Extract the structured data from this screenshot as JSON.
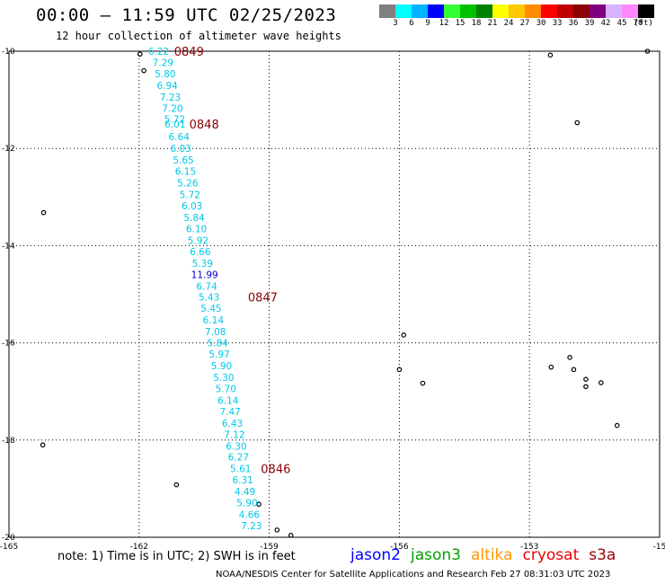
{
  "header": {
    "title": "00:00 – 11:59 UTC 02/25/2023",
    "subtitle": "12 hour collection of altimeter wave heights"
  },
  "color_scale": {
    "labels": [
      "3",
      "6",
      "9",
      "12",
      "15",
      "18",
      "21",
      "24",
      "27",
      "30",
      "33",
      "36",
      "39",
      "42",
      "45",
      "70",
      "(ft)"
    ],
    "colors": [
      "#7f7f7f",
      "#00ffff",
      "#00b4ff",
      "#0000ff",
      "#33ff33",
      "#00c000",
      "#008000",
      "#ffff00",
      "#ffc800",
      "#ff8c00",
      "#ff0000",
      "#c00000",
      "#8b0000",
      "#800080",
      "#d8b4ff",
      "#ff88ff",
      "#000000"
    ]
  },
  "chart_data": {
    "type": "scatter",
    "title": "00:00 – 11:59 UTC 02/25/2023",
    "subtitle": "12 hour collection of altimeter wave heights",
    "xlabel": "",
    "ylabel": "",
    "xlim": [
      -165,
      -150
    ],
    "ylim": [
      -20,
      -10
    ],
    "x_ticks": [
      "-165",
      "-162",
      "-159",
      "-156",
      "-153",
      "-15"
    ],
    "y_ticks": [
      "-10",
      "-12",
      "-14",
      "-16",
      "-18",
      "-20"
    ],
    "grid": true,
    "series": [
      {
        "name": "cryosat",
        "color": "#00c8e8",
        "points": [
          {
            "lon": -161.55,
            "lat": -10.0,
            "label": "6.22"
          },
          {
            "lon": -161.45,
            "lat": -10.23,
            "label": "7.29"
          },
          {
            "lon": -161.4,
            "lat": -10.46,
            "label": "5.80"
          },
          {
            "lon": -161.35,
            "lat": -10.7,
            "label": "6.94"
          },
          {
            "lon": -161.28,
            "lat": -10.94,
            "label": "7.23"
          },
          {
            "lon": -161.23,
            "lat": -11.17,
            "label": "7.20"
          },
          {
            "lon": -161.18,
            "lat": -11.4,
            "label": "5.72"
          },
          {
            "lon": -161.17,
            "lat": -11.5,
            "label": "6.01"
          },
          {
            "lon": -161.08,
            "lat": -11.76,
            "label": "6.64"
          },
          {
            "lon": -161.04,
            "lat": -12.0,
            "label": "6.03"
          },
          {
            "lon": -160.98,
            "lat": -12.24,
            "label": "5.65"
          },
          {
            "lon": -160.93,
            "lat": -12.47,
            "label": "6.15"
          },
          {
            "lon": -160.88,
            "lat": -12.71,
            "label": "5.26"
          },
          {
            "lon": -160.83,
            "lat": -12.95,
            "label": "5.72"
          },
          {
            "lon": -160.78,
            "lat": -13.18,
            "label": "6.03"
          },
          {
            "lon": -160.73,
            "lat": -13.42,
            "label": "5.84"
          },
          {
            "lon": -160.68,
            "lat": -13.65,
            "label": "6.10"
          },
          {
            "lon": -160.64,
            "lat": -13.89,
            "label": "5.92"
          },
          {
            "lon": -160.59,
            "lat": -14.12,
            "label": "6.66"
          },
          {
            "lon": -160.54,
            "lat": -14.36,
            "label": "5.39"
          },
          {
            "lon": -160.49,
            "lat": -14.59,
            "label": "11.99",
            "color": "#0000cc"
          },
          {
            "lon": -160.44,
            "lat": -14.83,
            "label": "6.74"
          },
          {
            "lon": -160.39,
            "lat": -15.06,
            "label": "5.43"
          },
          {
            "lon": -160.34,
            "lat": -15.29,
            "label": "5.45"
          },
          {
            "lon": -160.29,
            "lat": -15.53,
            "label": "6.14"
          },
          {
            "lon": -160.24,
            "lat": -15.77,
            "label": "7.08"
          },
          {
            "lon": -160.19,
            "lat": -16.0,
            "label": "5.84"
          },
          {
            "lon": -160.15,
            "lat": -16.23,
            "label": "5.97"
          },
          {
            "lon": -160.1,
            "lat": -16.47,
            "label": "5.90"
          },
          {
            "lon": -160.05,
            "lat": -16.71,
            "label": "5.30"
          },
          {
            "lon": -160.0,
            "lat": -16.94,
            "label": "5.70"
          },
          {
            "lon": -159.95,
            "lat": -17.18,
            "label": "6.14"
          },
          {
            "lon": -159.9,
            "lat": -17.41,
            "label": "7.47"
          },
          {
            "lon": -159.85,
            "lat": -17.65,
            "label": "6.43"
          },
          {
            "lon": -159.8,
            "lat": -17.88,
            "label": "7.12"
          },
          {
            "lon": -159.76,
            "lat": -18.12,
            "label": "6.30"
          },
          {
            "lon": -159.71,
            "lat": -18.35,
            "label": "6.27"
          },
          {
            "lon": -159.66,
            "lat": -18.59,
            "label": "5.61"
          },
          {
            "lon": -159.61,
            "lat": -18.82,
            "label": "6.31"
          },
          {
            "lon": -159.56,
            "lat": -19.06,
            "label": "4.49"
          },
          {
            "lon": -159.51,
            "lat": -19.29,
            "label": "5.90"
          },
          {
            "lon": -159.46,
            "lat": -19.53,
            "label": "4.66"
          },
          {
            "lon": -159.41,
            "lat": -19.76,
            "label": "7.23"
          }
        ]
      }
    ],
    "time_annotations": [
      {
        "lon": -160.85,
        "lat": -10.0,
        "text": "0849"
      },
      {
        "lon": -160.5,
        "lat": -11.5,
        "text": "0848"
      },
      {
        "lon": -159.15,
        "lat": -15.06,
        "text": "0847"
      },
      {
        "lon": -158.85,
        "lat": -18.59,
        "text": "0846"
      }
    ],
    "land_marks": [
      {
        "lon": -161.98,
        "lat": -10.06
      },
      {
        "lon": -161.89,
        "lat": -10.4
      },
      {
        "lon": -164.2,
        "lat": -13.32
      },
      {
        "lon": -164.22,
        "lat": -18.1
      },
      {
        "lon": -161.14,
        "lat": -18.92
      },
      {
        "lon": -159.24,
        "lat": -19.32
      },
      {
        "lon": -158.82,
        "lat": -19.85
      },
      {
        "lon": -158.5,
        "lat": -19.96
      },
      {
        "lon": -155.9,
        "lat": -15.84
      },
      {
        "lon": -156.0,
        "lat": -16.55
      },
      {
        "lon": -155.46,
        "lat": -16.83
      },
      {
        "lon": -152.52,
        "lat": -10.08
      },
      {
        "lon": -151.9,
        "lat": -11.47
      },
      {
        "lon": -152.07,
        "lat": -16.3
      },
      {
        "lon": -152.5,
        "lat": -16.5
      },
      {
        "lon": -151.98,
        "lat": -16.55
      },
      {
        "lon": -151.7,
        "lat": -16.75
      },
      {
        "lon": -151.7,
        "lat": -16.9
      },
      {
        "lon": -151.35,
        "lat": -16.82
      },
      {
        "lon": -150.98,
        "lat": -17.7
      },
      {
        "lon": -150.28,
        "lat": -10.0
      }
    ]
  },
  "satellite_legend": [
    {
      "name": "jason2",
      "color": "#0000ff"
    },
    {
      "name": "jason3",
      "color": "#00a000"
    },
    {
      "name": "altika",
      "color": "#ff9900"
    },
    {
      "name": "cryosat",
      "color": "#ee0000"
    },
    {
      "name": "s3a",
      "color": "#9b0000"
    }
  ],
  "footer": {
    "note": "note: 1) Time is in UTC; 2) SWH is in feet",
    "credit": "NOAA/NESDIS Center for Satellite Applications and Research   Feb 27 08:31:03 UTC 2023"
  }
}
